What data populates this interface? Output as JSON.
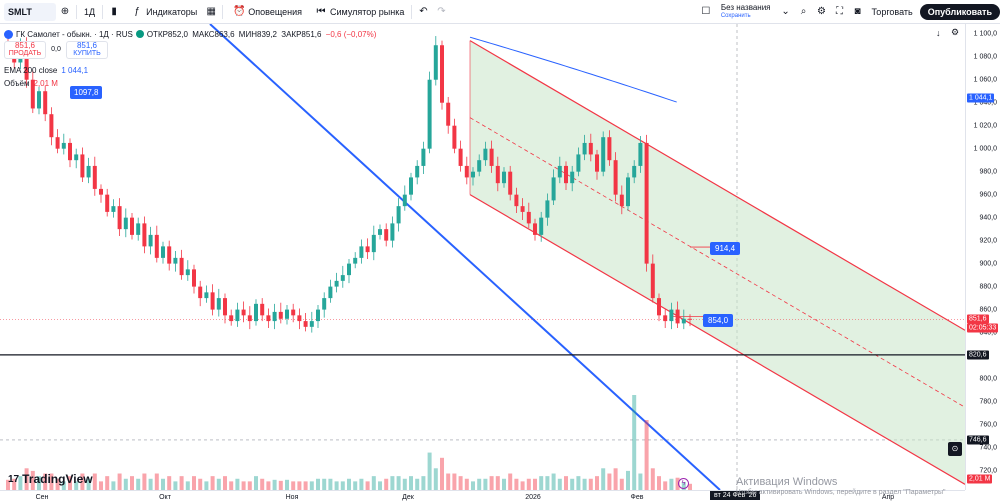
{
  "toolbar": {
    "symbol": "SMLT",
    "interval": "1Д",
    "indicators_label": "Индикаторы",
    "alerts_label": "Оповещения",
    "simulator_label": "Симулятор рынка",
    "layout_name": "Без названия",
    "layout_status": "Сохранить",
    "trade_label": "Торговать",
    "publish_label": "Опубликовать"
  },
  "legend": {
    "title": "ГК Самолет - обыкн. · 1Д · RUS",
    "open": "ОТКР852,0",
    "high": "МАКС863,6",
    "low": "МИН839,2",
    "close": "ЗАКР851,6",
    "change": "−0,6 (−0,07%)",
    "sell_price": "851,6",
    "sell_label": "ПРОДАТЬ",
    "spread": "0,0",
    "buy_price": "851,6",
    "buy_label": "КУПИТЬ",
    "ema_label": "EMA 200 close",
    "ema_value": "1 044,1",
    "volume_label": "Объём",
    "volume_value": "2,01 M"
  },
  "tags": {
    "t1": "1097,8",
    "t2": "914,4",
    "t3": "854,0"
  },
  "price_axis": {
    "ticks": [
      "1 100,0",
      "1 080,0",
      "1 060,0",
      "1 040,0",
      "1 020,0",
      "1 000,0",
      "980,0",
      "960,0",
      "940,0",
      "920,0",
      "900,0",
      "880,0",
      "860,0",
      "840,0",
      "800,0",
      "780,0",
      "760,0",
      "740,0",
      "720,0"
    ],
    "ema_tag": "1 044,1",
    "price_tag": "851,6",
    "timer": "02:05:33",
    "level_tag": "820,6",
    "crosshair_tag": "746,6",
    "volume_tag": "2,01 M"
  },
  "time_axis": {
    "labels": [
      "Сен",
      "Окт",
      "Ноя",
      "Дек",
      "2026",
      "Фев",
      "Апр"
    ],
    "cursor": "вт 24 Фев '26"
  },
  "watermark": {
    "line1": "Активация Windows",
    "line2": "Чтобы активировать Windows, перейдите в раздел \"Параметры\""
  },
  "brand": "TradingView",
  "colors": {
    "up": "#26a69a",
    "down": "#f23645",
    "ema": "#2962ff",
    "channel": "#f23645",
    "channel_fill": "#c8e6c9",
    "trendline": "#2962ff"
  },
  "chart_data": {
    "type": "candlestick",
    "title": "ГК Самолет - обыкн. · 1Д · RUS",
    "x_labels": [
      "Сен",
      "Окт",
      "Ноя",
      "Дек",
      "2026",
      "Фев",
      "Апр"
    ],
    "ylim": [
      710,
      1105
    ],
    "last_price": 851.6,
    "horizontal_level": 820.6,
    "ema200_last": 1044.1,
    "channel": {
      "upper_start": 1094,
      "upper_end": 838,
      "mid_tag": 914.4,
      "lower_tag": 854.0
    },
    "closes": [
      1085,
      1075,
      1090,
      1060,
      1035,
      1050,
      1030,
      1010,
      1000,
      1005,
      990,
      995,
      975,
      985,
      965,
      960,
      945,
      950,
      930,
      940,
      925,
      935,
      915,
      925,
      905,
      915,
      900,
      905,
      890,
      895,
      880,
      870,
      875,
      860,
      870,
      855,
      850,
      860,
      855,
      850,
      865,
      855,
      850,
      858,
      852,
      860,
      855,
      850,
      845,
      850,
      860,
      870,
      880,
      885,
      890,
      900,
      905,
      915,
      910,
      925,
      930,
      920,
      935,
      950,
      960,
      975,
      985,
      1000,
      1060,
      1090,
      1040,
      1020,
      1000,
      985,
      975,
      980,
      990,
      1000,
      985,
      970,
      980,
      960,
      950,
      945,
      935,
      925,
      940,
      955,
      975,
      985,
      970,
      980,
      995,
      1005,
      995,
      980,
      1010,
      990,
      960,
      950,
      975,
      985,
      1005,
      900,
      870,
      855,
      850,
      860,
      848,
      852,
      851.6
    ],
    "volume_peak": 2.01
  }
}
